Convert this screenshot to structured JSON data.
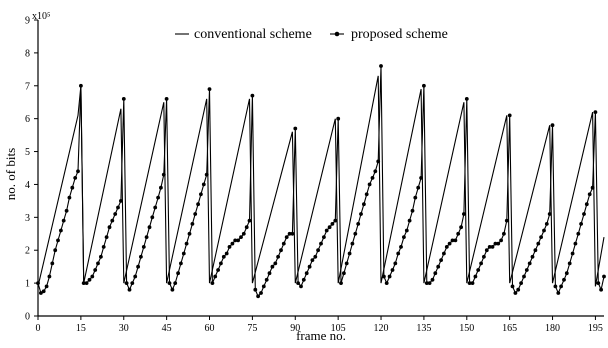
{
  "chart_data": {
    "type": "line",
    "title": "",
    "xlabel": "frame no.",
    "ylabel": "no. of bits",
    "y_multiplier_label": "x10⁵",
    "xlim": [
      0,
      198
    ],
    "ylim": [
      0,
      9
    ],
    "xticks": [
      0,
      15,
      30,
      45,
      60,
      75,
      90,
      105,
      120,
      135,
      150,
      165,
      180,
      195
    ],
    "yticks": [
      0,
      1,
      2,
      3,
      4,
      5,
      6,
      7,
      8,
      9
    ],
    "grid": false,
    "legend_placement": "top-center",
    "series": [
      {
        "name": "conventional scheme",
        "marker": "none",
        "color": "#000000",
        "points": [
          [
            0,
            0.9
          ],
          [
            14,
            6.1
          ],
          [
            15,
            7.0
          ],
          [
            16,
            1.0
          ],
          [
            29,
            6.3
          ],
          [
            30,
            1.0
          ],
          [
            44,
            6.5
          ],
          [
            45,
            1.0
          ],
          [
            59,
            6.6
          ],
          [
            60,
            1.0
          ],
          [
            74,
            6.6
          ],
          [
            75,
            1.0
          ],
          [
            89,
            5.6
          ],
          [
            90,
            1.0
          ],
          [
            104,
            6.0
          ],
          [
            105,
            1.0
          ],
          [
            119,
            7.3
          ],
          [
            120,
            1.0
          ],
          [
            134,
            6.9
          ],
          [
            135,
            1.0
          ],
          [
            149,
            6.5
          ],
          [
            150,
            1.0
          ],
          [
            164,
            6.1
          ],
          [
            165,
            1.0
          ],
          [
            179,
            5.8
          ],
          [
            180,
            1.0
          ],
          [
            194,
            6.2
          ],
          [
            195,
            0.9
          ],
          [
            198,
            2.4
          ]
        ]
      },
      {
        "name": "proposed scheme",
        "marker": "circle",
        "color": "#000000",
        "points": [
          [
            0,
            1.0
          ],
          [
            1,
            0.7
          ],
          [
            2,
            0.75
          ],
          [
            3,
            0.9
          ],
          [
            4,
            1.2
          ],
          [
            5,
            1.6
          ],
          [
            6,
            2.0
          ],
          [
            7,
            2.3
          ],
          [
            8,
            2.6
          ],
          [
            9,
            2.9
          ],
          [
            10,
            3.2
          ],
          [
            11,
            3.6
          ],
          [
            12,
            3.9
          ],
          [
            13,
            4.2
          ],
          [
            14,
            4.4
          ],
          [
            15,
            7.0
          ],
          [
            16,
            1.0
          ],
          [
            17,
            1.0
          ],
          [
            18,
            1.1
          ],
          [
            19,
            1.2
          ],
          [
            20,
            1.4
          ],
          [
            21,
            1.6
          ],
          [
            22,
            1.8
          ],
          [
            23,
            2.1
          ],
          [
            24,
            2.4
          ],
          [
            25,
            2.7
          ],
          [
            26,
            2.9
          ],
          [
            27,
            3.1
          ],
          [
            28,
            3.3
          ],
          [
            29,
            3.5
          ],
          [
            30,
            6.6
          ],
          [
            31,
            1.0
          ],
          [
            32,
            0.8
          ],
          [
            33,
            1.0
          ],
          [
            34,
            1.2
          ],
          [
            35,
            1.5
          ],
          [
            36,
            1.8
          ],
          [
            37,
            2.1
          ],
          [
            38,
            2.4
          ],
          [
            39,
            2.7
          ],
          [
            40,
            3.0
          ],
          [
            41,
            3.3
          ],
          [
            42,
            3.6
          ],
          [
            43,
            3.9
          ],
          [
            44,
            4.3
          ],
          [
            45,
            6.6
          ],
          [
            46,
            1.0
          ],
          [
            47,
            0.8
          ],
          [
            48,
            1.0
          ],
          [
            49,
            1.3
          ],
          [
            50,
            1.6
          ],
          [
            51,
            1.9
          ],
          [
            52,
            2.2
          ],
          [
            53,
            2.5
          ],
          [
            54,
            2.8
          ],
          [
            55,
            3.1
          ],
          [
            56,
            3.4
          ],
          [
            57,
            3.7
          ],
          [
            58,
            4.0
          ],
          [
            59,
            4.3
          ],
          [
            60,
            6.9
          ],
          [
            61,
            1.0
          ],
          [
            62,
            1.2
          ],
          [
            63,
            1.4
          ],
          [
            64,
            1.6
          ],
          [
            65,
            1.8
          ],
          [
            66,
            1.9
          ],
          [
            67,
            2.1
          ],
          [
            68,
            2.2
          ],
          [
            69,
            2.3
          ],
          [
            70,
            2.3
          ],
          [
            71,
            2.4
          ],
          [
            72,
            2.5
          ],
          [
            73,
            2.7
          ],
          [
            74,
            2.9
          ],
          [
            75,
            6.7
          ],
          [
            76,
            0.8
          ],
          [
            77,
            0.6
          ],
          [
            78,
            0.7
          ],
          [
            79,
            0.9
          ],
          [
            80,
            1.1
          ],
          [
            81,
            1.3
          ],
          [
            82,
            1.5
          ],
          [
            83,
            1.6
          ],
          [
            84,
            1.8
          ],
          [
            85,
            2.0
          ],
          [
            86,
            2.2
          ],
          [
            87,
            2.4
          ],
          [
            88,
            2.5
          ],
          [
            89,
            2.5
          ],
          [
            90,
            5.7
          ],
          [
            91,
            1.0
          ],
          [
            92,
            0.9
          ],
          [
            93,
            1.1
          ],
          [
            94,
            1.3
          ],
          [
            95,
            1.5
          ],
          [
            96,
            1.7
          ],
          [
            97,
            1.8
          ],
          [
            98,
            2.0
          ],
          [
            99,
            2.2
          ],
          [
            100,
            2.4
          ],
          [
            101,
            2.6
          ],
          [
            102,
            2.7
          ],
          [
            103,
            2.8
          ],
          [
            104,
            2.9
          ],
          [
            105,
            6.0
          ],
          [
            106,
            1.0
          ],
          [
            107,
            1.3
          ],
          [
            108,
            1.6
          ],
          [
            109,
            1.9
          ],
          [
            110,
            2.2
          ],
          [
            111,
            2.5
          ],
          [
            112,
            2.8
          ],
          [
            113,
            3.1
          ],
          [
            114,
            3.4
          ],
          [
            115,
            3.7
          ],
          [
            116,
            4.0
          ],
          [
            117,
            4.2
          ],
          [
            118,
            4.4
          ],
          [
            119,
            4.7
          ],
          [
            120,
            7.6
          ],
          [
            121,
            1.2
          ],
          [
            122,
            1.0
          ],
          [
            123,
            1.2
          ],
          [
            124,
            1.4
          ],
          [
            125,
            1.6
          ],
          [
            126,
            1.9
          ],
          [
            127,
            2.1
          ],
          [
            128,
            2.4
          ],
          [
            129,
            2.6
          ],
          [
            130,
            2.9
          ],
          [
            131,
            3.2
          ],
          [
            132,
            3.6
          ],
          [
            133,
            3.9
          ],
          [
            134,
            4.2
          ],
          [
            135,
            7.0
          ],
          [
            136,
            1.0
          ],
          [
            137,
            1.0
          ],
          [
            138,
            1.1
          ],
          [
            139,
            1.3
          ],
          [
            140,
            1.5
          ],
          [
            141,
            1.7
          ],
          [
            142,
            1.9
          ],
          [
            143,
            2.1
          ],
          [
            144,
            2.2
          ],
          [
            145,
            2.3
          ],
          [
            146,
            2.3
          ],
          [
            147,
            2.5
          ],
          [
            148,
            2.7
          ],
          [
            149,
            3.1
          ],
          [
            150,
            6.6
          ],
          [
            151,
            1.0
          ],
          [
            152,
            1.0
          ],
          [
            153,
            1.2
          ],
          [
            154,
            1.4
          ],
          [
            155,
            1.6
          ],
          [
            156,
            1.8
          ],
          [
            157,
            2.0
          ],
          [
            158,
            2.1
          ],
          [
            159,
            2.1
          ],
          [
            160,
            2.2
          ],
          [
            161,
            2.2
          ],
          [
            162,
            2.3
          ],
          [
            163,
            2.5
          ],
          [
            164,
            2.9
          ],
          [
            165,
            6.1
          ],
          [
            166,
            0.9
          ],
          [
            167,
            0.7
          ],
          [
            168,
            0.8
          ],
          [
            169,
            1.0
          ],
          [
            170,
            1.2
          ],
          [
            171,
            1.4
          ],
          [
            172,
            1.6
          ],
          [
            173,
            1.8
          ],
          [
            174,
            2.0
          ],
          [
            175,
            2.2
          ],
          [
            176,
            2.4
          ],
          [
            177,
            2.6
          ],
          [
            178,
            2.8
          ],
          [
            179,
            3.1
          ],
          [
            180,
            5.8
          ],
          [
            181,
            0.9
          ],
          [
            182,
            0.7
          ],
          [
            183,
            0.9
          ],
          [
            184,
            1.1
          ],
          [
            185,
            1.3
          ],
          [
            186,
            1.6
          ],
          [
            187,
            1.9
          ],
          [
            188,
            2.2
          ],
          [
            189,
            2.5
          ],
          [
            190,
            2.8
          ],
          [
            191,
            3.1
          ],
          [
            192,
            3.4
          ],
          [
            193,
            3.7
          ],
          [
            194,
            3.9
          ],
          [
            195,
            6.2
          ],
          [
            196,
            1.0
          ],
          [
            197,
            0.8
          ],
          [
            198,
            1.2
          ]
        ]
      }
    ]
  }
}
